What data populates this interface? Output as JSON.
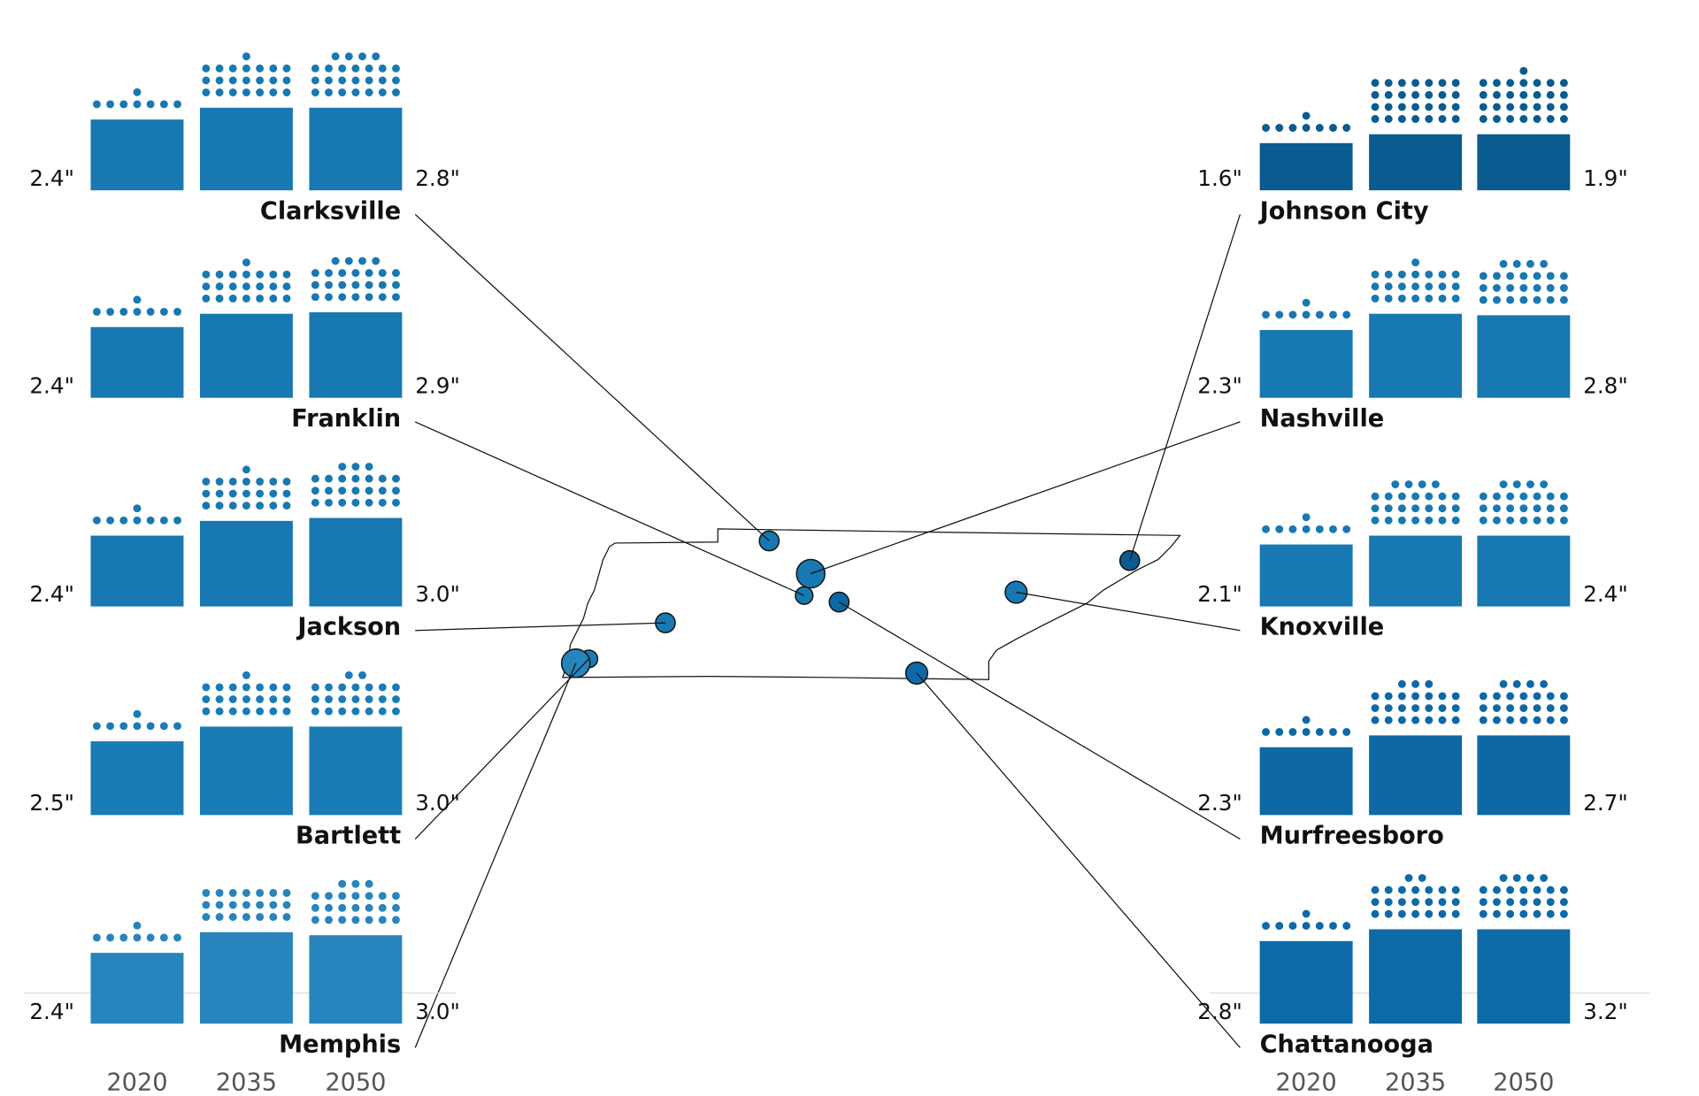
{
  "chart_data": [
    {
      "type": "bar",
      "categories": [
        "2020",
        "2035",
        "2050"
      ],
      "series": [
        {
          "name": "Clarksville",
          "color": "#1878b2",
          "values": [
            2.4,
            2.8,
            2.8
          ],
          "value_labels": [
            "2.4\"",
            null,
            "2.8\""
          ],
          "dots": [
            8,
            22,
            25
          ]
        },
        {
          "name": "Franklin",
          "color": "#1878b2",
          "values": [
            2.4,
            2.85,
            2.9
          ],
          "value_labels": [
            "2.4\"",
            null,
            "2.9\""
          ],
          "dots": [
            8,
            22,
            25
          ]
        },
        {
          "name": "Jackson",
          "color": "#1878b2",
          "values": [
            2.4,
            2.9,
            3.0
          ],
          "value_labels": [
            "2.4\"",
            null,
            "3.0\""
          ],
          "dots": [
            8,
            22,
            24
          ]
        },
        {
          "name": "Bartlett",
          "color": "#1a7cb6",
          "values": [
            2.5,
            3.0,
            3.0
          ],
          "value_labels": [
            "2.5\"",
            null,
            "3.0\""
          ],
          "dots": [
            8,
            22,
            23
          ]
        },
        {
          "name": "Memphis",
          "color": "#2784bd",
          "values": [
            2.4,
            3.1,
            3.0
          ],
          "value_labels": [
            "2.4\"",
            null,
            "3.0\""
          ],
          "dots": [
            8,
            21,
            24
          ]
        }
      ]
    },
    {
      "type": "bar",
      "categories": [
        "2020",
        "2035",
        "2050"
      ],
      "series": [
        {
          "name": "Johnson City",
          "color": "#0a5b90",
          "values": [
            1.6,
            1.9,
            1.9
          ],
          "value_labels": [
            "1.6\"",
            null,
            "1.9\""
          ],
          "dots": [
            8,
            28,
            29
          ]
        },
        {
          "name": "Nashville",
          "color": "#1878b2",
          "values": [
            2.3,
            2.85,
            2.8
          ],
          "value_labels": [
            "2.3\"",
            null,
            "2.8\""
          ],
          "dots": [
            8,
            22,
            25
          ]
        },
        {
          "name": "Knoxville",
          "color": "#1878b2",
          "values": [
            2.1,
            2.4,
            2.4
          ],
          "value_labels": [
            "2.1\"",
            null,
            "2.4\""
          ],
          "dots": [
            8,
            25,
            25
          ]
        },
        {
          "name": "Murfreesboro",
          "color": "#0d68a5",
          "values": [
            2.3,
            2.7,
            2.7
          ],
          "value_labels": [
            "2.3\"",
            null,
            "2.7\""
          ],
          "dots": [
            8,
            24,
            25
          ]
        },
        {
          "name": "Chattanooga",
          "color": "#0d6aa8",
          "values": [
            2.8,
            3.2,
            3.2
          ],
          "value_labels": [
            "2.8\"",
            null,
            "3.2\""
          ],
          "dots": [
            8,
            23,
            25
          ]
        }
      ]
    }
  ]
}
